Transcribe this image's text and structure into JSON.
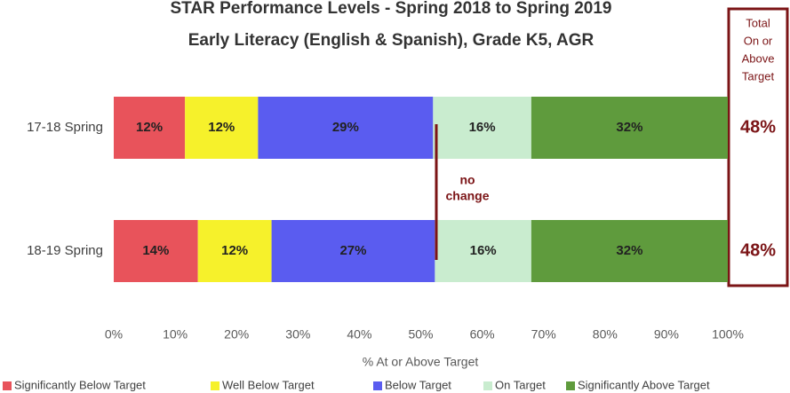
{
  "chart_data": {
    "type": "stacked-bar-horizontal",
    "title": [
      "STAR Performance Levels - Spring 2018 to Spring 2019",
      "Early Literacy (English & Spanish), Grade K5, AGR"
    ],
    "categories": [
      "17-18 Spring",
      "18-19 Spring"
    ],
    "series": [
      {
        "name": "Significantly Below Target",
        "color": "#e8535b",
        "values": [
          11.6,
          13.7
        ],
        "value_labels": [
          "12%",
          "14%"
        ]
      },
      {
        "name": "Well Below Target",
        "color": "#f6f12b",
        "values": [
          11.9,
          12.0
        ],
        "value_labels": [
          "12%",
          "12%"
        ]
      },
      {
        "name": "Below Target",
        "color": "#5a5cf0",
        "values": [
          28.5,
          26.6
        ],
        "value_labels": [
          "29%",
          "27%"
        ]
      },
      {
        "name": "On Target",
        "color": "#c9eccf",
        "values": [
          16.0,
          15.7
        ],
        "value_labels": [
          "16%",
          "16%"
        ]
      },
      {
        "name": "Significantly Above Target",
        "color": "#5f9b3d",
        "values": [
          32.0,
          32.0
        ],
        "value_labels": [
          "32%",
          "32%"
        ]
      }
    ],
    "xlim": [
      0,
      100
    ],
    "xticks": [
      {
        "value": 0,
        "label": "0%"
      },
      {
        "value": 10,
        "label": "10%"
      },
      {
        "value": 20,
        "label": "20%"
      },
      {
        "value": 30,
        "label": "30%"
      },
      {
        "value": 40,
        "label": "40%"
      },
      {
        "value": 50,
        "label": "50%"
      },
      {
        "value": 60,
        "label": "60%"
      },
      {
        "value": 70,
        "label": "70%"
      },
      {
        "value": 80,
        "label": "80%"
      },
      {
        "value": 90,
        "label": "90%"
      },
      {
        "value": 100,
        "label": "100%"
      }
    ],
    "xlabel": "% At or Above Target",
    "annotation": [
      "no",
      "change"
    ],
    "totals": {
      "label": [
        "Total",
        "On or",
        "Above",
        "Target"
      ],
      "values": [
        48,
        48
      ],
      "value_labels": [
        "48%",
        "48%"
      ],
      "color": "#7b1416"
    },
    "legend": "bottom"
  }
}
